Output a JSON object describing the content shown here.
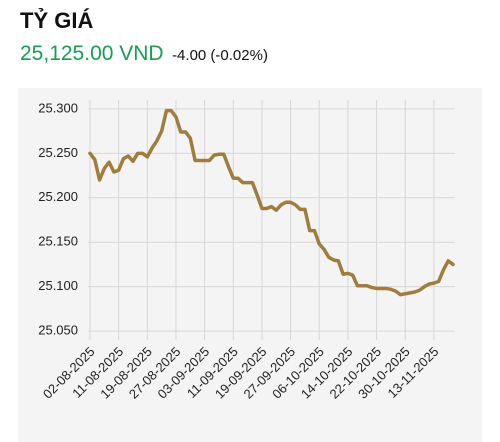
{
  "header": {
    "title": "TỶ GIÁ",
    "price": "25,125.00 VND",
    "change": "-4.00 (-0.02%)"
  },
  "chart_data": {
    "type": "line",
    "categories": [
      "02-08-2025",
      null,
      null,
      null,
      null,
      null,
      "11-08-2025",
      null,
      null,
      null,
      null,
      null,
      "19-08-2025",
      null,
      null,
      null,
      null,
      null,
      "27-08-2025",
      null,
      null,
      null,
      null,
      null,
      "03-09-2025",
      null,
      null,
      null,
      null,
      null,
      "11-09-2025",
      null,
      null,
      null,
      null,
      null,
      "19-09-2025",
      null,
      null,
      null,
      null,
      null,
      "27-09-2025",
      null,
      null,
      null,
      null,
      null,
      "06-10-2025",
      null,
      null,
      null,
      null,
      null,
      "14-10-2025",
      null,
      null,
      null,
      null,
      null,
      "22-10-2025",
      null,
      null,
      null,
      null,
      null,
      "30-10-2025",
      null,
      null,
      null,
      null,
      null,
      "13-11-2025",
      null,
      null,
      null,
      null
    ],
    "values": [
      25250,
      25243,
      25220,
      25233,
      25240,
      25229,
      25231,
      25244,
      25247,
      25241,
      25250,
      25250,
      25246,
      25256,
      25264,
      25275,
      25298,
      25298,
      25291,
      25274,
      25274,
      25267,
      25242,
      25242,
      25242,
      25242,
      25248,
      25249,
      25249,
      25235,
      25222,
      25222,
      25217,
      25217,
      25217,
      25203,
      25188,
      25188,
      25190,
      25186,
      25192,
      25195,
      25195,
      25192,
      25187,
      25187,
      25163,
      25163,
      25148,
      25142,
      25133,
      25130,
      25129,
      25114,
      25115,
      25113,
      25101,
      25101,
      25101,
      25099,
      25098,
      25098,
      25098,
      25097,
      25095,
      25091,
      25092,
      25093,
      25094,
      25096,
      25100,
      25103,
      25104,
      25106,
      25119,
      25129,
      25125
    ],
    "color": "#a07d3c",
    "ylim": [
      25040,
      25310
    ],
    "yticks": [
      {
        "value": 25050,
        "label": "25.050"
      },
      {
        "value": 25100,
        "label": "25.100"
      },
      {
        "value": 25150,
        "label": "25.150"
      },
      {
        "value": 25200,
        "label": "25.200"
      },
      {
        "value": 25250,
        "label": "25.250"
      },
      {
        "value": 25300,
        "label": "25.300"
      }
    ],
    "grid": true
  }
}
